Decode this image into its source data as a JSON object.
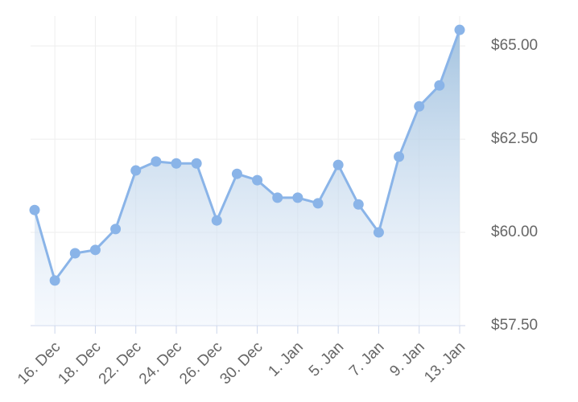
{
  "chart_data": {
    "type": "area",
    "categories": [
      null,
      "16. Dec",
      null,
      "18. Dec",
      null,
      "22. Dec",
      null,
      "24. Dec",
      null,
      "26. Dec",
      null,
      "30. Dec",
      null,
      "1. Jan",
      null,
      "5. Jan",
      null,
      "7. Jan",
      null,
      "9. Jan",
      null,
      "13. Jan"
    ],
    "values": [
      60.6,
      58.71,
      59.44,
      59.53,
      60.09,
      61.66,
      61.9,
      61.85,
      61.85,
      60.32,
      61.57,
      61.4,
      60.93,
      60.93,
      60.78,
      61.81,
      60.75,
      60.0,
      62.03,
      63.38,
      63.94,
      65.43
    ],
    "color": "#8ab4e8",
    "ylim": [
      57.5,
      65.8
    ],
    "yticks": [
      {
        "value": 57.5,
        "label": "$57.50"
      },
      {
        "value": 60,
        "label": "$60.00"
      },
      {
        "value": 62.5,
        "label": "$62.50"
      },
      {
        "value": 65,
        "label": "$65.00"
      }
    ],
    "grid": true
  }
}
